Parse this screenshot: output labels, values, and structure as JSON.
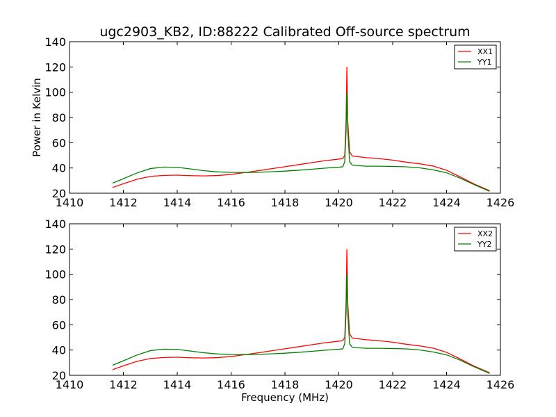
{
  "chart_data": [
    {
      "type": "line",
      "title": "ugc2903_KB2, ID:88222 Calibrated Off-source spectrum",
      "xlabel": "",
      "ylabel": "Power in Kelvin",
      "xlim": [
        1410,
        1426
      ],
      "ylim": [
        20,
        140
      ],
      "xticks": [
        "1410",
        "1412",
        "1414",
        "1416",
        "1418",
        "1420",
        "1422",
        "1424",
        "1426"
      ],
      "yticks": [
        "20",
        "40",
        "60",
        "80",
        "100",
        "120",
        "140"
      ],
      "grid": false,
      "legend_position": "top-right",
      "series": [
        {
          "name": "XX1",
          "color": "#ff0000",
          "points": [
            [
              1411.6,
              24.5
            ],
            [
              1412,
              27.5
            ],
            [
              1412.5,
              31
            ],
            [
              1413,
              33.3
            ],
            [
              1413.5,
              34.1
            ],
            [
              1414,
              34.3
            ],
            [
              1414.5,
              33.9
            ],
            [
              1415,
              33.7
            ],
            [
              1415.5,
              34
            ],
            [
              1416,
              34.9
            ],
            [
              1416.5,
              36.3
            ],
            [
              1417,
              37.8
            ],
            [
              1417.5,
              39.4
            ],
            [
              1418,
              41
            ],
            [
              1418.5,
              42.6
            ],
            [
              1419,
              44.2
            ],
            [
              1419.5,
              45.8
            ],
            [
              1420,
              47
            ],
            [
              1420.15,
              47.5
            ],
            [
              1420.22,
              50
            ],
            [
              1420.27,
              78
            ],
            [
              1420.3,
              120
            ],
            [
              1420.33,
              78
            ],
            [
              1420.4,
              53
            ],
            [
              1420.5,
              49.5
            ],
            [
              1421,
              48.2
            ],
            [
              1421.5,
              47.4
            ],
            [
              1422,
              46.2
            ],
            [
              1422.5,
              44.6
            ],
            [
              1423,
              43.3
            ],
            [
              1423.5,
              41.5
            ],
            [
              1424,
              38.2
            ],
            [
              1424.5,
              33
            ],
            [
              1425,
              27.5
            ],
            [
              1425.6,
              22
            ]
          ]
        },
        {
          "name": "YY1",
          "color": "#008000",
          "points": [
            [
              1411.6,
              28
            ],
            [
              1412,
              31.5
            ],
            [
              1412.5,
              36
            ],
            [
              1413,
              39.5
            ],
            [
              1413.5,
              40.7
            ],
            [
              1414,
              40.5
            ],
            [
              1414.5,
              39.2
            ],
            [
              1415,
              37.8
            ],
            [
              1415.5,
              36.9
            ],
            [
              1416,
              36.5
            ],
            [
              1416.5,
              36.4
            ],
            [
              1417,
              36.6
            ],
            [
              1417.5,
              37
            ],
            [
              1418,
              37.5
            ],
            [
              1418.5,
              38.2
            ],
            [
              1419,
              39
            ],
            [
              1419.5,
              39.9
            ],
            [
              1420,
              40.6
            ],
            [
              1420.15,
              41
            ],
            [
              1420.22,
              45
            ],
            [
              1420.27,
              70
            ],
            [
              1420.3,
              100
            ],
            [
              1420.33,
              70
            ],
            [
              1420.4,
              45
            ],
            [
              1420.5,
              42.2
            ],
            [
              1421,
              41.4
            ],
            [
              1421.5,
              41.4
            ],
            [
              1422,
              41.2
            ],
            [
              1422.5,
              40.9
            ],
            [
              1423,
              40.1
            ],
            [
              1423.5,
              38.5
            ],
            [
              1424,
              36.2
            ],
            [
              1424.5,
              32
            ],
            [
              1425,
              27
            ],
            [
              1425.6,
              21.5
            ]
          ]
        }
      ]
    },
    {
      "type": "line",
      "title": "",
      "xlabel": "Frequency (MHz)",
      "ylabel": "",
      "xlim": [
        1410,
        1426
      ],
      "ylim": [
        20,
        140
      ],
      "xticks": [
        "1410",
        "1412",
        "1414",
        "1416",
        "1418",
        "1420",
        "1422",
        "1424",
        "1426"
      ],
      "yticks": [
        "20",
        "40",
        "60",
        "80",
        "100",
        "120",
        "140"
      ],
      "grid": false,
      "legend_position": "top-right",
      "series": [
        {
          "name": "XX2",
          "color": "#ff0000",
          "points": [
            [
              1411.6,
              24.5
            ],
            [
              1412,
              27.5
            ],
            [
              1412.5,
              31
            ],
            [
              1413,
              33.3
            ],
            [
              1413.5,
              34.1
            ],
            [
              1414,
              34.3
            ],
            [
              1414.5,
              33.9
            ],
            [
              1415,
              33.7
            ],
            [
              1415.5,
              34
            ],
            [
              1416,
              34.9
            ],
            [
              1416.5,
              36.3
            ],
            [
              1417,
              37.8
            ],
            [
              1417.5,
              39.4
            ],
            [
              1418,
              41
            ],
            [
              1418.5,
              42.6
            ],
            [
              1419,
              44.2
            ],
            [
              1419.5,
              45.8
            ],
            [
              1420,
              47
            ],
            [
              1420.15,
              47.5
            ],
            [
              1420.22,
              50
            ],
            [
              1420.27,
              78
            ],
            [
              1420.3,
              120
            ],
            [
              1420.33,
              78
            ],
            [
              1420.4,
              53
            ],
            [
              1420.5,
              49.5
            ],
            [
              1421,
              48.2
            ],
            [
              1421.5,
              47.4
            ],
            [
              1422,
              46.2
            ],
            [
              1422.5,
              44.6
            ],
            [
              1423,
              43.3
            ],
            [
              1423.5,
              41.5
            ],
            [
              1424,
              38.2
            ],
            [
              1424.5,
              33
            ],
            [
              1425,
              27.5
            ],
            [
              1425.6,
              22
            ]
          ]
        },
        {
          "name": "YY2",
          "color": "#008000",
          "points": [
            [
              1411.6,
              28
            ],
            [
              1412,
              31.5
            ],
            [
              1412.5,
              36
            ],
            [
              1413,
              39.5
            ],
            [
              1413.5,
              40.7
            ],
            [
              1414,
              40.5
            ],
            [
              1414.5,
              39.2
            ],
            [
              1415,
              37.8
            ],
            [
              1415.5,
              36.9
            ],
            [
              1416,
              36.5
            ],
            [
              1416.5,
              36.4
            ],
            [
              1417,
              36.6
            ],
            [
              1417.5,
              37
            ],
            [
              1418,
              37.5
            ],
            [
              1418.5,
              38.2
            ],
            [
              1419,
              39
            ],
            [
              1419.5,
              39.9
            ],
            [
              1420,
              40.6
            ],
            [
              1420.15,
              41
            ],
            [
              1420.22,
              45
            ],
            [
              1420.27,
              70
            ],
            [
              1420.3,
              100
            ],
            [
              1420.33,
              70
            ],
            [
              1420.4,
              45
            ],
            [
              1420.5,
              42.2
            ],
            [
              1421,
              41.4
            ],
            [
              1421.5,
              41.4
            ],
            [
              1422,
              41.2
            ],
            [
              1422.5,
              40.9
            ],
            [
              1423,
              40.1
            ],
            [
              1423.5,
              38.5
            ],
            [
              1424,
              36.2
            ],
            [
              1424.5,
              32
            ],
            [
              1425,
              27
            ],
            [
              1425.6,
              21.5
            ]
          ]
        }
      ]
    }
  ]
}
